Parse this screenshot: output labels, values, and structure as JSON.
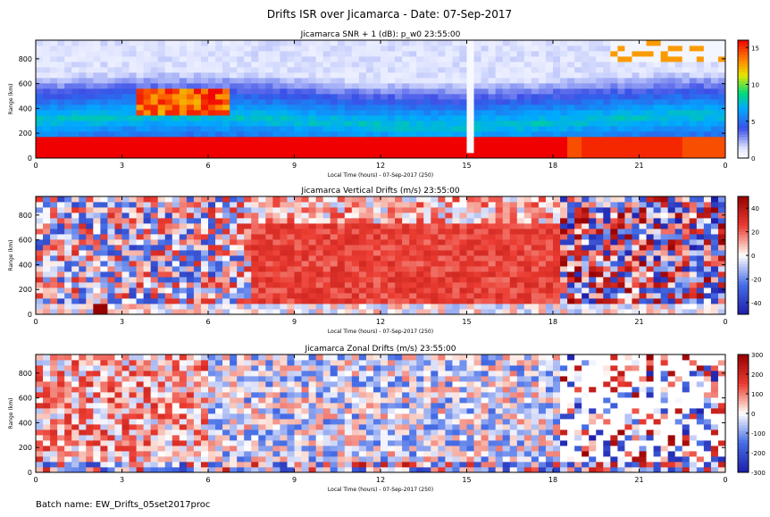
{
  "title": "Drifts ISR over Jicamarca - Date: 07-Sep-2017",
  "batch_name": "Batch name: EW_Drifts_05set2017proc",
  "chart_data": [
    {
      "type": "heatmap",
      "title": "Jicamarca SNR + 1 (dB): p_w0 23:55:00",
      "xlabel": "Local Time (hours) - 07-Sep-2017 (250)",
      "ylabel": "Range (km)",
      "xlim": [
        0,
        24
      ],
      "ylim": [
        0,
        950
      ],
      "x_ticks": [
        "0",
        "3",
        "6",
        "9",
        "12",
        "15",
        "18",
        "21",
        "0"
      ],
      "y_ticks": [
        "0",
        "200",
        "400",
        "600",
        "800"
      ],
      "colorbar": {
        "range": [
          0,
          16
        ],
        "ticks": [
          "0",
          "5",
          "10",
          "15"
        ],
        "palette": "rainbow"
      }
    },
    {
      "type": "heatmap",
      "title": "Jicamarca Vertical Drifts (m/s) 23:55:00",
      "xlabel": "Local Time (hours) - 07-Sep-2017 (250)",
      "ylabel": "Range (km)",
      "xlim": [
        0,
        24
      ],
      "ylim": [
        0,
        950
      ],
      "x_ticks": [
        "0",
        "3",
        "6",
        "9",
        "12",
        "15",
        "18",
        "21",
        "0"
      ],
      "y_ticks": [
        "0",
        "200",
        "400",
        "600",
        "800"
      ],
      "colorbar": {
        "range": [
          -50,
          50
        ],
        "ticks": [
          "40",
          "20",
          "0",
          "-20",
          "-40"
        ],
        "palette": "blue-white-red"
      }
    },
    {
      "type": "heatmap",
      "title": "Jicamarca Zonal Drifts (m/s) 23:55:00",
      "xlabel": "Local Time (hours) - 07-Sep-2017 (250)",
      "ylabel": "Range (km)",
      "xlim": [
        0,
        24
      ],
      "ylim": [
        0,
        950
      ],
      "x_ticks": [
        "0",
        "3",
        "6",
        "9",
        "12",
        "15",
        "18",
        "21",
        "0"
      ],
      "y_ticks": [
        "0",
        "200",
        "400",
        "600",
        "800"
      ],
      "colorbar": {
        "range": [
          -300,
          300
        ],
        "ticks": [
          "300",
          "200",
          "100",
          "0",
          "-100",
          "-200",
          "-300"
        ],
        "palette": "blue-white-red"
      }
    }
  ]
}
